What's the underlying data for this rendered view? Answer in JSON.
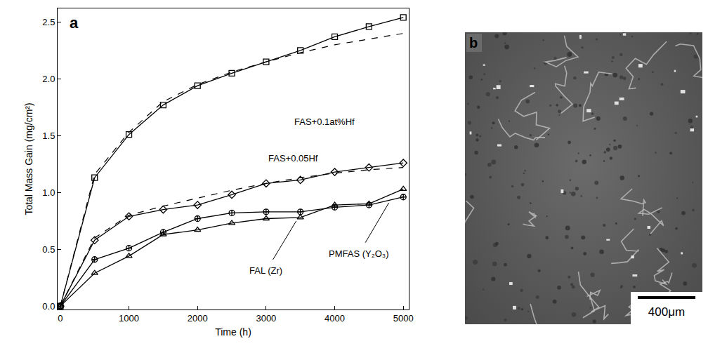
{
  "chart_data": {
    "type": "line",
    "panel_label": "a",
    "x_label": "Time (h)",
    "y_label": "Total Mass Gain (mg/cm²)",
    "x": [
      0,
      500,
      1000,
      1500,
      2000,
      2500,
      3000,
      3500,
      4000,
      4500,
      5000
    ],
    "series": [
      {
        "color": "#000000",
        "marker": "square",
        "line_style": "solid",
        "values": [
          0,
          1.13,
          1.51,
          1.77,
          1.94,
          2.05,
          2.15,
          2.25,
          2.37,
          2.46,
          2.54
        ]
      },
      {
        "color": "#000000",
        "line_style": "dashed",
        "values": [
          0,
          1.16,
          1.53,
          1.8,
          1.95,
          2.06,
          2.15,
          2.23,
          2.3,
          2.35,
          2.4
        ]
      },
      {
        "color": "#000000",
        "marker": "diamond",
        "line_style": "solid",
        "values": [
          0,
          0.58,
          0.79,
          0.85,
          0.89,
          0.98,
          1.08,
          1.11,
          1.18,
          1.22,
          1.26
        ]
      },
      {
        "color": "#000000",
        "line_style": "dashed",
        "values": [
          0,
          0.6,
          0.8,
          0.88,
          0.95,
          1.02,
          1.08,
          1.13,
          1.17,
          1.2,
          1.22
        ]
      },
      {
        "color": "#000000",
        "marker": "circle-cross",
        "line_style": "solid",
        "values": [
          0,
          0.41,
          0.51,
          0.65,
          0.77,
          0.82,
          0.83,
          0.83,
          0.87,
          0.89,
          0.96
        ]
      },
      {
        "color": "#000000",
        "marker": "triangle",
        "line_style": "solid",
        "values": [
          0,
          0.29,
          0.44,
          0.63,
          0.67,
          0.73,
          0.77,
          0.78,
          0.89,
          0.9,
          1.03
        ]
      }
    ],
    "annotations": [
      {
        "text": "FAS+0.1at%Hf",
        "x": 3850,
        "y": 1.62
      },
      {
        "text": "FAS+0.05Hf",
        "x": 3400,
        "y": 1.3
      },
      {
        "text": "FAL (Zr)",
        "x": 3000,
        "y": 0.31,
        "arrow_x": 3450,
        "arrow_y": 0.76
      },
      {
        "text": "PMFAS (Y₂O₃)",
        "x": 4350,
        "y": 0.46,
        "arrow_x": 4800,
        "arrow_y": 0.92
      }
    ],
    "xlim": [
      -40,
      5080
    ],
    "ylim": [
      -0.03,
      2.62
    ],
    "xticks": [
      0,
      1000,
      2000,
      3000,
      4000,
      5000
    ],
    "yticks": [
      {
        "value": 0,
        "label": "0.0"
      },
      0.5,
      {
        "value": 1,
        "label": "1.0"
      },
      1.5,
      {
        "value": 2,
        "label": "2.0"
      },
      2.5
    ],
    "grid": false
  },
  "micrograph": {
    "panel_label": "b",
    "scale_bar": "400μm"
  }
}
